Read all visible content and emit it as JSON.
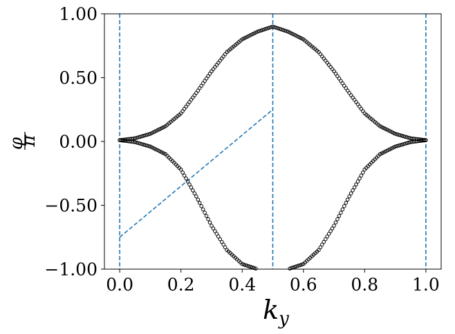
{
  "chart_data": {
    "type": "scatter",
    "title": "",
    "xlabel": "k",
    "xlabel_subscript": "y",
    "ylabel_numerator": "φ",
    "ylabel_denominator": "π",
    "xlim": [
      -0.05,
      1.05
    ],
    "ylim": [
      -1.0,
      1.0
    ],
    "xticks": [
      0.0,
      0.2,
      0.4,
      0.6,
      0.8,
      1.0
    ],
    "xtick_labels": [
      "0.0",
      "0.2",
      "0.4",
      "0.6",
      "0.8",
      "1.0"
    ],
    "yticks": [
      1.0,
      0.5,
      0.0,
      -0.5,
      -1.0
    ],
    "ytick_labels": [
      "1.00",
      "0.50",
      "0.00",
      "−0.50",
      "−1.00"
    ],
    "grid": false,
    "series": [
      {
        "marker": "open-circle",
        "color": "#000000",
        "x": [
          0.0,
          0.05,
          0.1,
          0.15,
          0.2,
          0.25,
          0.3,
          0.35,
          0.4,
          0.45,
          0.5
        ],
        "upper_branch": [
          0.01,
          0.025,
          0.06,
          0.12,
          0.22,
          0.38,
          0.55,
          0.7,
          0.8,
          0.86,
          0.9
        ],
        "lower_branch": [
          0.01,
          -0.005,
          -0.04,
          -0.1,
          -0.22,
          -0.43,
          -0.66,
          -0.85,
          -0.96,
          -1.0,
          -1.0
        ],
        "symmetry": "mirrored about ky = 0.5"
      }
    ],
    "reference_lines": {
      "color": "#1f77b4",
      "style": "dashed",
      "vertical_x": [
        0.0,
        0.5,
        1.0
      ],
      "diagonal": {
        "x": [
          0.0,
          0.5
        ],
        "y": [
          -0.75,
          0.25
        ]
      }
    }
  }
}
